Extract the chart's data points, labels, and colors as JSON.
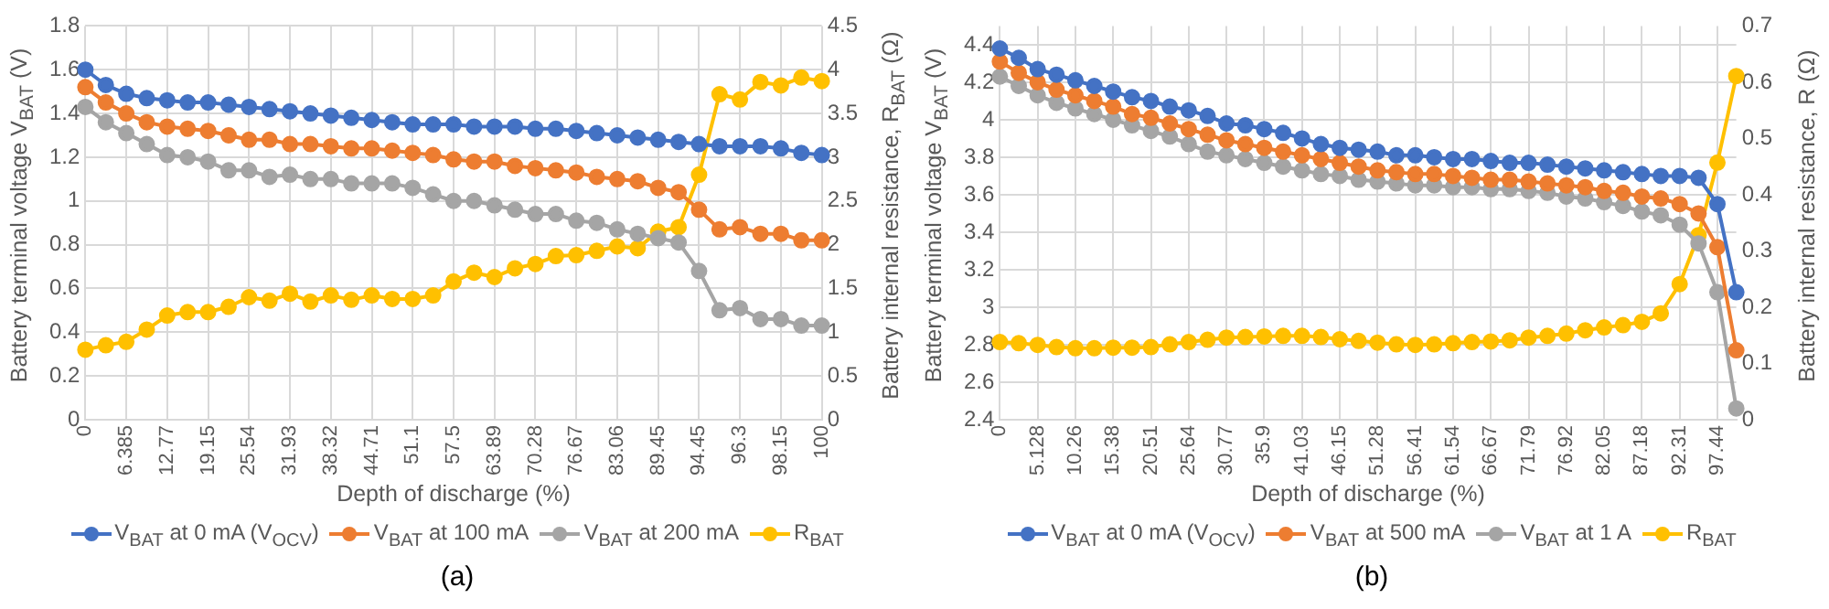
{
  "chart_data": [
    {
      "type": "line",
      "categories": [
        "0",
        null,
        "6.385",
        null,
        "12.77",
        null,
        "19.15",
        null,
        "25.54",
        null,
        "31.93",
        null,
        "38.32",
        null,
        "44.71",
        null,
        "51.1",
        null,
        "57.5",
        null,
        "63.89",
        null,
        "70.28",
        null,
        "76.67",
        null,
        "83.06",
        null,
        "89.45",
        null,
        "94.45",
        null,
        "96.3",
        null,
        "98.15",
        null,
        "100"
      ],
      "xlabel": "Depth of discharge (%)",
      "ylabel": "Battery terminal voltage V$_{BAT}$ (V)",
      "y2label": "Battery internal resistance, R$_{BAT}$ (Ω)",
      "ylim": [
        0,
        1.8
      ],
      "yticks": [
        0,
        0.2,
        0.4,
        0.6,
        0.8,
        1,
        1.2,
        1.4,
        1.6,
        1.8
      ],
      "y2lim": [
        0,
        4.5
      ],
      "y2ticks": [
        0,
        0.5,
        1,
        1.5,
        2,
        2.5,
        3,
        3.5,
        4,
        4.5
      ],
      "grid": true,
      "legend": "bottom",
      "marker": "circle",
      "annotations": [
        "(a)"
      ],
      "series": [
        {
          "name": "V$_{BAT}$ at 0 mA (V$_{OCV}$)",
          "color": "#4472c4",
          "values": [
            1.6,
            1.53,
            1.49,
            1.47,
            1.46,
            1.45,
            1.45,
            1.44,
            1.43,
            1.42,
            1.41,
            1.4,
            1.39,
            1.38,
            1.37,
            1.36,
            1.35,
            1.35,
            1.35,
            1.34,
            1.34,
            1.34,
            1.33,
            1.33,
            1.32,
            1.31,
            1.3,
            1.29,
            1.28,
            1.27,
            1.26,
            1.25,
            1.25,
            1.25,
            1.24,
            1.22,
            1.21
          ]
        },
        {
          "name": "V$_{BAT}$ at 100 mA",
          "color": "#ed7d31",
          "values": [
            1.52,
            1.45,
            1.4,
            1.36,
            1.34,
            1.33,
            1.32,
            1.3,
            1.28,
            1.28,
            1.26,
            1.26,
            1.25,
            1.24,
            1.24,
            1.23,
            1.22,
            1.21,
            1.19,
            1.18,
            1.18,
            1.16,
            1.15,
            1.14,
            1.13,
            1.11,
            1.1,
            1.09,
            1.06,
            1.04,
            0.96,
            0.87,
            0.88,
            0.85,
            0.85,
            0.82,
            0.82
          ]
        },
        {
          "name": "V$_{BAT}$ at 200 mA",
          "color": "#a5a5a5",
          "values": [
            1.43,
            1.36,
            1.31,
            1.26,
            1.21,
            1.2,
            1.18,
            1.14,
            1.14,
            1.11,
            1.12,
            1.1,
            1.1,
            1.08,
            1.08,
            1.08,
            1.06,
            1.03,
            1,
            1,
            0.98,
            0.96,
            0.94,
            0.94,
            0.91,
            0.9,
            0.87,
            0.85,
            0.83,
            0.81,
            0.68,
            0.5,
            0.51,
            0.46,
            0.46,
            0.43,
            0.43
          ]
        },
        {
          "name": "R$_{BAT}$",
          "color": "#ffc000",
          "axis": "y2",
          "values": [
            0.8,
            0.85,
            0.89,
            1.03,
            1.19,
            1.23,
            1.23,
            1.29,
            1.4,
            1.36,
            1.44,
            1.35,
            1.42,
            1.37,
            1.42,
            1.38,
            1.38,
            1.42,
            1.58,
            1.68,
            1.63,
            1.73,
            1.78,
            1.87,
            1.88,
            1.93,
            1.98,
            1.96,
            2.15,
            2.2,
            2.8,
            3.72,
            3.66,
            3.86,
            3.82,
            3.91,
            3.87
          ]
        }
      ]
    },
    {
      "type": "line",
      "categories": [
        "0",
        null,
        "5.128",
        null,
        "10.26",
        null,
        "15.38",
        null,
        "20.51",
        null,
        "25.64",
        null,
        "30.77",
        null,
        "35.9",
        null,
        "41.03",
        null,
        "46.15",
        null,
        "51.28",
        null,
        "56.41",
        null,
        "61.54",
        null,
        "66.67",
        null,
        "71.79",
        null,
        "76.92",
        null,
        "82.05",
        null,
        "87.18",
        null,
        "92.31",
        null,
        "97.44",
        null
      ],
      "xlabel": "Depth of discharge (%)",
      "ylabel": "Battery terminal voltage V$_{BAT}$ (V)",
      "y2label": "Battery internal resistance, R (Ω)",
      "ylim": [
        2.4,
        4.5
      ],
      "yticks": [
        2.4,
        2.6,
        2.8,
        3,
        3.2,
        3.4,
        3.6,
        3.8,
        4,
        4.2,
        4.4
      ],
      "y2lim": [
        0,
        0.7
      ],
      "y2ticks": [
        0,
        0.1,
        0.2,
        0.3,
        0.4,
        0.5,
        0.6,
        0.7
      ],
      "grid": true,
      "legend": "bottom",
      "marker": "circle",
      "annotations": [
        "(b)"
      ],
      "series": [
        {
          "name": "V$_{BAT}$ at 0 mA (V$_{OCV}$)",
          "color": "#4472c4",
          "values": [
            4.38,
            4.33,
            4.27,
            4.24,
            4.21,
            4.18,
            4.15,
            4.12,
            4.1,
            4.07,
            4.05,
            4.02,
            3.98,
            3.97,
            3.95,
            3.93,
            3.9,
            3.87,
            3.85,
            3.84,
            3.83,
            3.81,
            3.81,
            3.8,
            3.79,
            3.79,
            3.78,
            3.77,
            3.77,
            3.76,
            3.75,
            3.74,
            3.73,
            3.72,
            3.71,
            3.7,
            3.7,
            3.69,
            3.55,
            3.08
          ]
        },
        {
          "name": "V$_{BAT}$ at 500 mA",
          "color": "#ed7d31",
          "values": [
            4.31,
            4.25,
            4.2,
            4.16,
            4.13,
            4.1,
            4.07,
            4.03,
            4.01,
            3.98,
            3.95,
            3.92,
            3.89,
            3.87,
            3.85,
            3.83,
            3.81,
            3.79,
            3.77,
            3.75,
            3.73,
            3.72,
            3.71,
            3.71,
            3.7,
            3.69,
            3.68,
            3.68,
            3.67,
            3.66,
            3.65,
            3.64,
            3.62,
            3.61,
            3.59,
            3.58,
            3.55,
            3.5,
            3.32,
            2.77
          ]
        },
        {
          "name": "V$_{BAT}$ at 1 A",
          "color": "#a5a5a5",
          "values": [
            4.23,
            4.18,
            4.13,
            4.09,
            4.06,
            4.03,
            4,
            3.97,
            3.94,
            3.91,
            3.87,
            3.83,
            3.81,
            3.79,
            3.77,
            3.75,
            3.73,
            3.71,
            3.7,
            3.68,
            3.67,
            3.66,
            3.65,
            3.65,
            3.64,
            3.64,
            3.63,
            3.63,
            3.62,
            3.61,
            3.59,
            3.58,
            3.56,
            3.54,
            3.51,
            3.49,
            3.44,
            3.34,
            3.08,
            2.46
          ]
        },
        {
          "name": "R$_{BAT}$",
          "color": "#ffc000",
          "axis": "y2",
          "values": [
            0.138,
            0.136,
            0.133,
            0.129,
            0.127,
            0.127,
            0.128,
            0.128,
            0.129,
            0.134,
            0.138,
            0.142,
            0.146,
            0.147,
            0.148,
            0.149,
            0.149,
            0.147,
            0.143,
            0.14,
            0.137,
            0.134,
            0.133,
            0.134,
            0.136,
            0.138,
            0.139,
            0.141,
            0.146,
            0.149,
            0.153,
            0.159,
            0.164,
            0.168,
            0.174,
            0.189,
            0.241,
            0.328,
            0.457,
            0.611
          ]
        }
      ]
    }
  ]
}
